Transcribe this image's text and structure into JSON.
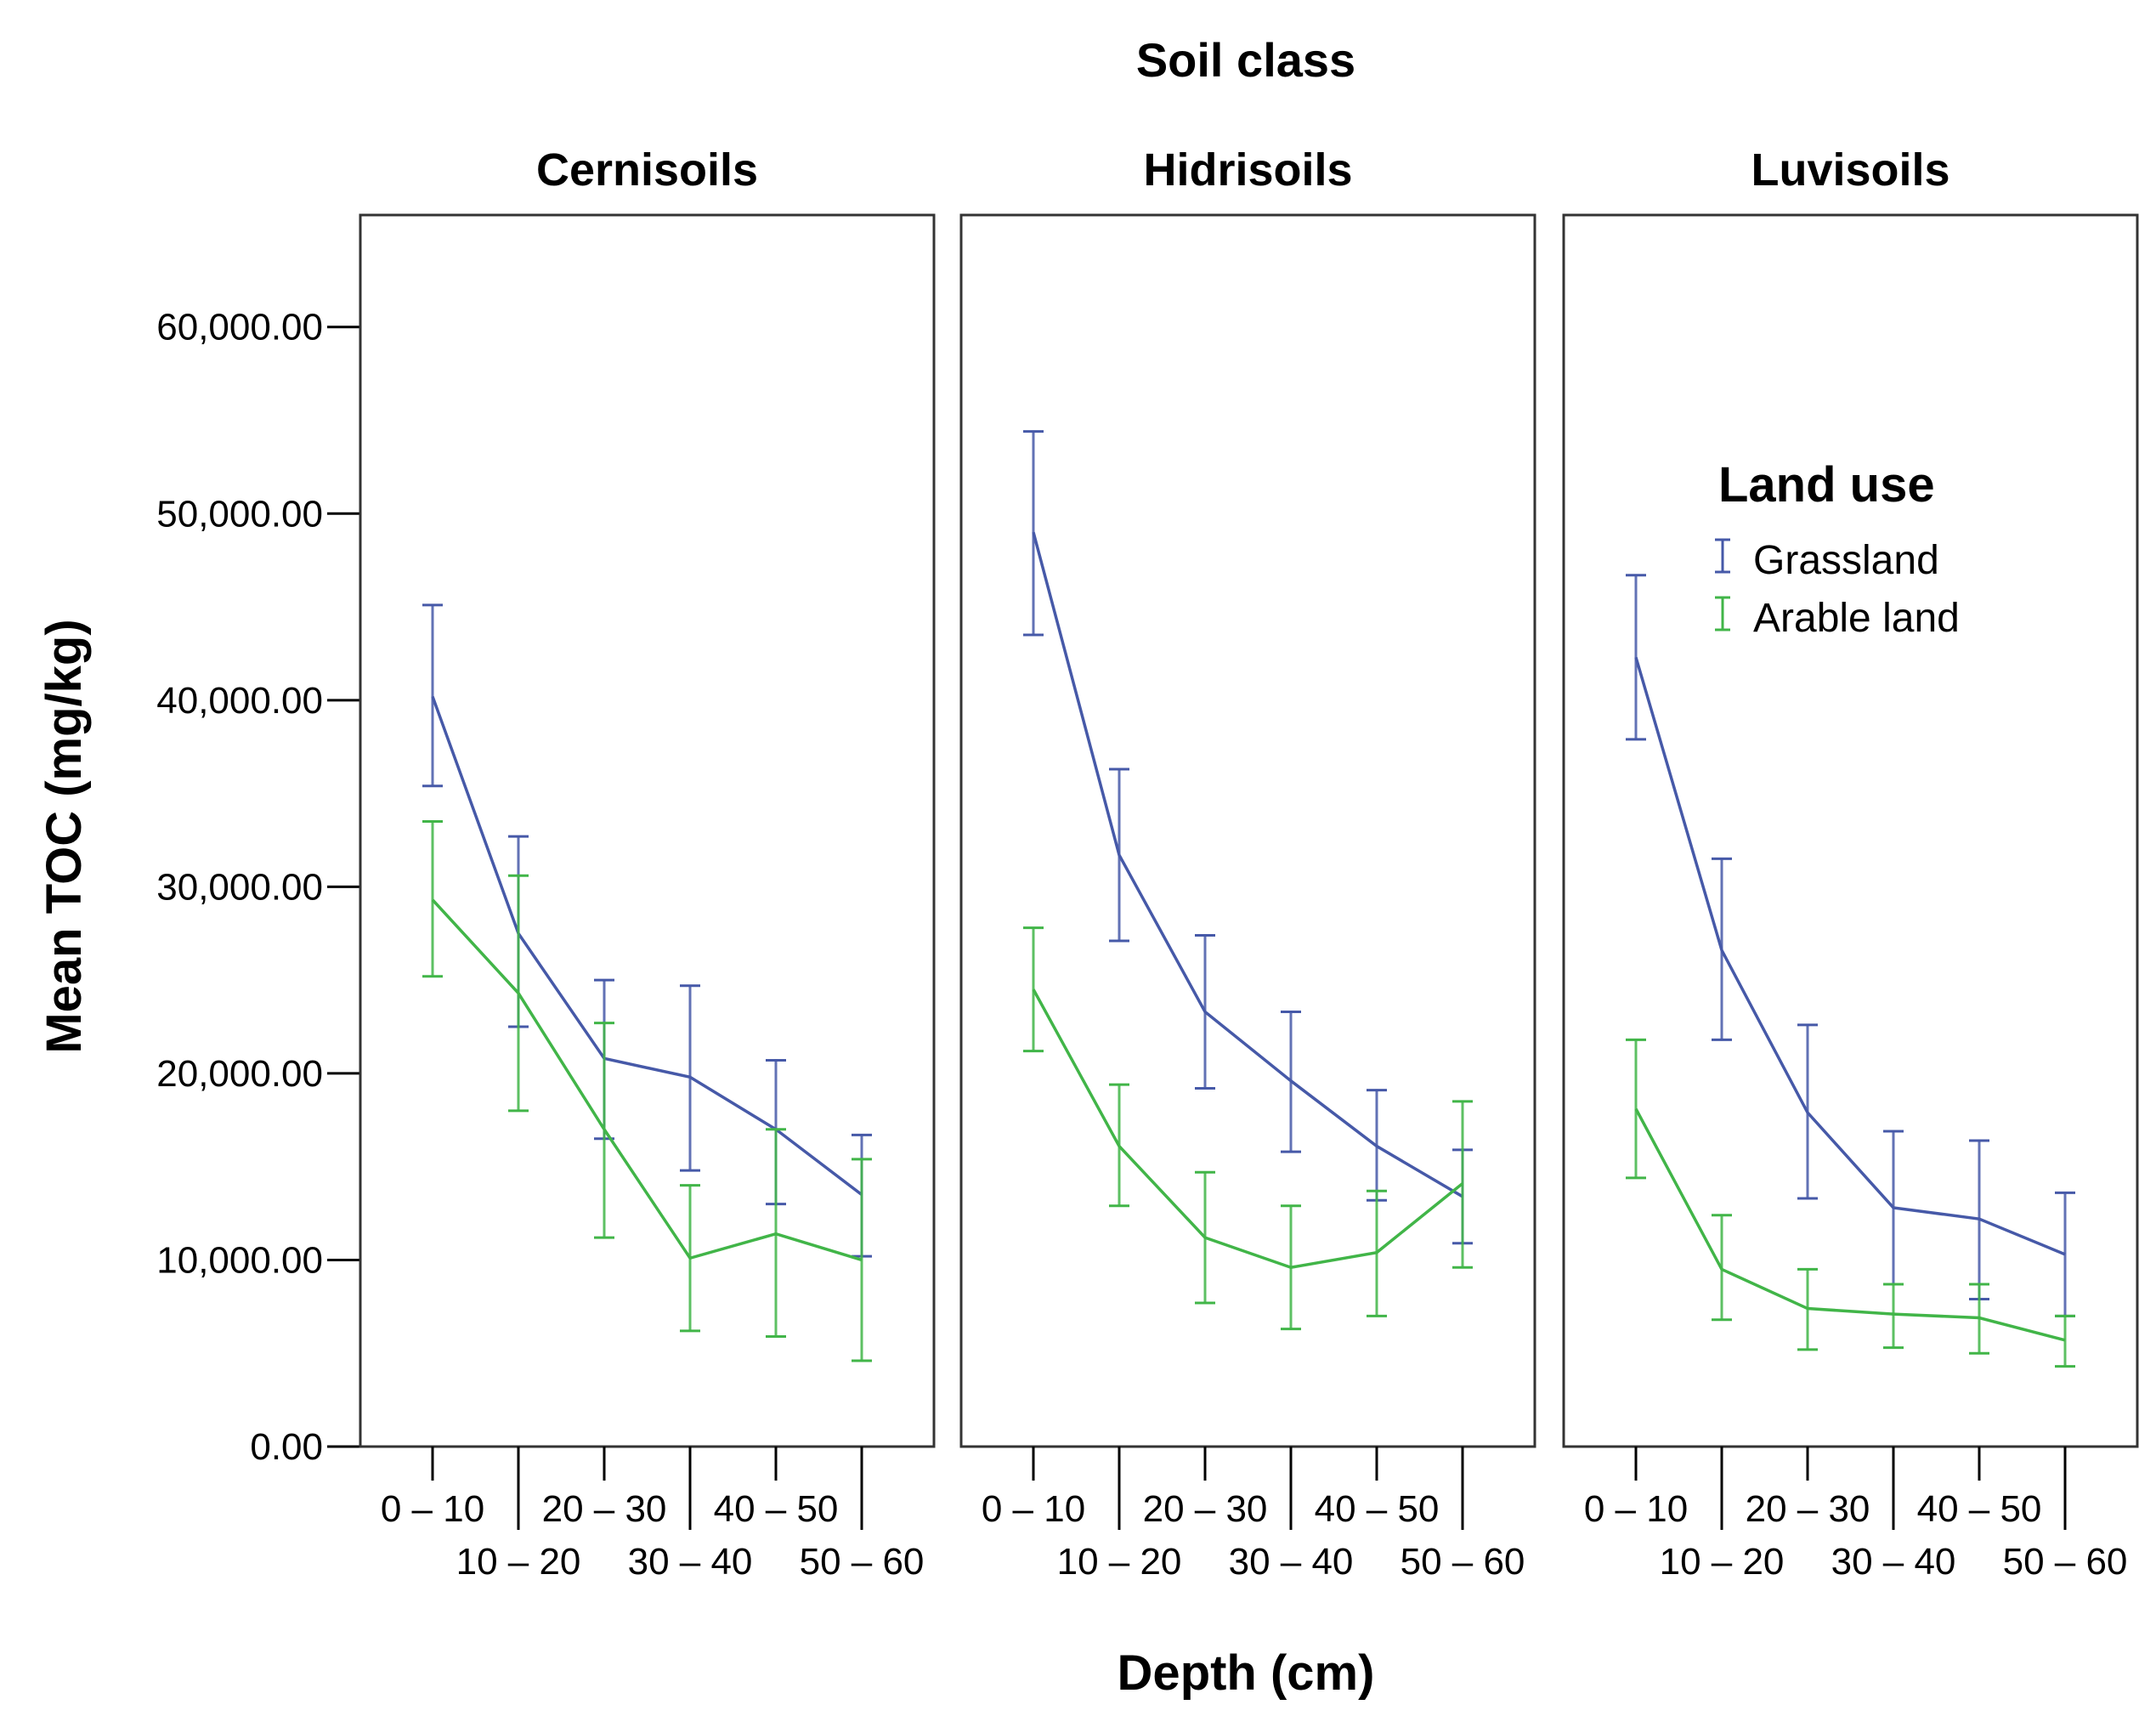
{
  "chart_data": {
    "type": "line",
    "title": "Soil class",
    "xlabel": "Depth (cm)",
    "ylabel": "Mean TOC (mg/kg)",
    "ylim": [
      0,
      66000
    ],
    "y_ticks": [
      {
        "value": 0,
        "label": "0.00"
      },
      {
        "value": 10000,
        "label": "10,000.00"
      },
      {
        "value": 20000,
        "label": "20,000.00"
      },
      {
        "value": 30000,
        "label": "30,000.00"
      },
      {
        "value": 40000,
        "label": "40,000.00"
      },
      {
        "value": 50000,
        "label": "50,000.00"
      },
      {
        "value": 60000,
        "label": "60,000.00"
      }
    ],
    "categories": [
      "0 – 10",
      "10 – 20",
      "20 – 30",
      "30 – 40",
      "40 – 50",
      "50 – 60"
    ],
    "legend": {
      "title": "Land use",
      "position": "top-right (inside Luvisoils panel)",
      "entries": [
        {
          "name": "Grassland",
          "color": "#4659A8"
        },
        {
          "name": "Arable land",
          "color": "#41B548"
        }
      ]
    },
    "panels": [
      {
        "name": "Cernisoils",
        "series": [
          {
            "name": "Grassland",
            "values": [
              40200,
              27500,
              20800,
              19800,
              17000,
              13500
            ],
            "err_low": [
              35400,
              22500,
              16500,
              14800,
              13000,
              10200
            ],
            "err_high": [
              45100,
              32700,
              25000,
              24700,
              20700,
              16700
            ]
          },
          {
            "name": "Arable land",
            "values": [
              29300,
              24300,
              17000,
              10100,
              11400,
              10000
            ],
            "err_low": [
              25200,
              18000,
              11200,
              6200,
              5900,
              4600
            ],
            "err_high": [
              33500,
              30600,
              22700,
              14000,
              17000,
              15400
            ]
          }
        ]
      },
      {
        "name": "Hidrisoils",
        "series": [
          {
            "name": "Grassland",
            "values": [
              49000,
              31700,
              23300,
              19600,
              16100,
              13400
            ],
            "err_low": [
              43500,
              27100,
              19200,
              15800,
              13200,
              10900
            ],
            "err_high": [
              54400,
              36300,
              27400,
              23300,
              19100,
              15900
            ]
          },
          {
            "name": "Arable land",
            "values": [
              24500,
              16100,
              11200,
              9600,
              10400,
              14100
            ],
            "err_low": [
              21200,
              12900,
              7700,
              6300,
              7000,
              9600
            ],
            "err_high": [
              27800,
              19400,
              14700,
              12900,
              13700,
              18500
            ]
          }
        ]
      },
      {
        "name": "Luvisoils",
        "series": [
          {
            "name": "Grassland",
            "values": [
              42300,
              26600,
              17900,
              12800,
              12200,
              10300
            ],
            "err_low": [
              37900,
              21800,
              13300,
              8700,
              7900,
              7000
            ],
            "err_high": [
              46700,
              31500,
              22600,
              16900,
              16400,
              13600
            ]
          },
          {
            "name": "Arable land",
            "values": [
              18100,
              9500,
              7400,
              7100,
              6900,
              5700
            ],
            "err_low": [
              14400,
              6800,
              5200,
              5300,
              5000,
              4300
            ],
            "err_high": [
              21800,
              12400,
              9500,
              8700,
              8700,
              7000
            ]
          }
        ]
      }
    ]
  }
}
